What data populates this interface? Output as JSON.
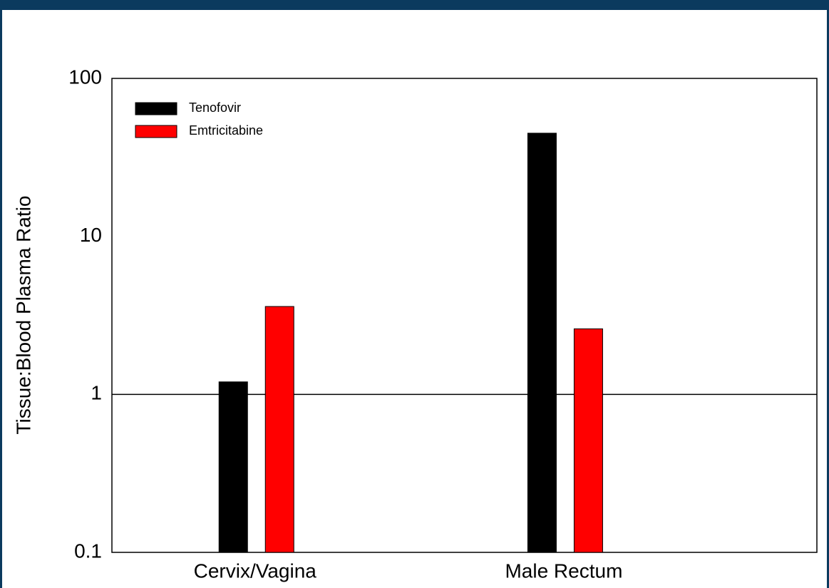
{
  "chart_data": {
    "type": "bar",
    "y_label": "Tissue:Blood Plasma Ratio",
    "categories": [
      "Cervix/Vagina",
      "Male Rectum"
    ],
    "series": [
      {
        "name": "Tenofovir",
        "color": "#000000",
        "values": [
          1.2,
          45
        ]
      },
      {
        "name": "Emtricitabine",
        "color": "#ff0000",
        "values": [
          3.6,
          2.6
        ]
      }
    ],
    "log_scale": true,
    "ylim": [
      0.1,
      100
    ],
    "yticks": [
      0.1,
      1,
      10,
      100
    ],
    "reference_line": 1,
    "legend": "upper-left"
  }
}
